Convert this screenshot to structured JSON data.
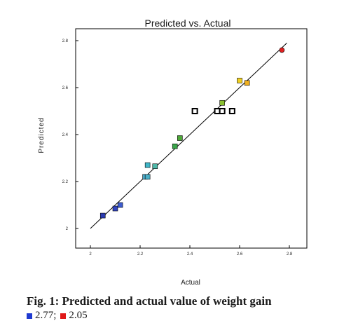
{
  "chart_data": {
    "type": "scatter",
    "title": "Predicted vs. Actual",
    "xlabel": "Actual",
    "ylabel": "Predicted",
    "xlim": [
      2.0,
      2.8
    ],
    "ylim": [
      2.0,
      2.8
    ],
    "xticks": [
      "2",
      "2.2",
      "2.4",
      "2.6",
      "2.8"
    ],
    "yticks": [
      "2",
      "2.2",
      "2.4",
      "2.6",
      "2.8"
    ],
    "reference_line": {
      "x": [
        2.0,
        2.79
      ],
      "y": [
        2.0,
        2.79
      ]
    },
    "points": [
      {
        "x": 2.05,
        "y": 2.055,
        "color": "#2a3bb0",
        "marker": "square",
        "filled": true
      },
      {
        "x": 2.1,
        "y": 2.085,
        "color": "#3245c0",
        "marker": "square",
        "filled": true
      },
      {
        "x": 2.12,
        "y": 2.1,
        "color": "#3d5cd0",
        "marker": "square",
        "filled": true
      },
      {
        "x": 2.22,
        "y": 2.22,
        "color": "#4aa8c8",
        "marker": "square",
        "filled": true
      },
      {
        "x": 2.23,
        "y": 2.22,
        "color": "#4ab0c8",
        "marker": "square",
        "filled": true
      },
      {
        "x": 2.23,
        "y": 2.27,
        "color": "#3fb6c8",
        "marker": "square",
        "filled": true
      },
      {
        "x": 2.26,
        "y": 2.265,
        "color": "#4fb8a8",
        "marker": "square",
        "filled": true
      },
      {
        "x": 2.34,
        "y": 2.35,
        "color": "#3aa64a",
        "marker": "square",
        "filled": true
      },
      {
        "x": 2.36,
        "y": 2.385,
        "color": "#4ea838",
        "marker": "square",
        "filled": true
      },
      {
        "x": 2.42,
        "y": 2.5,
        "color": "#000000",
        "marker": "square",
        "filled": false
      },
      {
        "x": 2.51,
        "y": 2.5,
        "color": "#000000",
        "marker": "square",
        "filled": false
      },
      {
        "x": 2.53,
        "y": 2.5,
        "color": "#000000",
        "marker": "square",
        "filled": false
      },
      {
        "x": 2.57,
        "y": 2.5,
        "color": "#000000",
        "marker": "square",
        "filled": false
      },
      {
        "x": 2.53,
        "y": 2.535,
        "color": "#8ac030",
        "marker": "square",
        "filled": true
      },
      {
        "x": 2.6,
        "y": 2.63,
        "color": "#f0d020",
        "marker": "square",
        "filled": true
      },
      {
        "x": 2.63,
        "y": 2.62,
        "color": "#f0b020",
        "marker": "square",
        "filled": true
      },
      {
        "x": 2.77,
        "y": 2.76,
        "color": "#e02020",
        "marker": "circle",
        "filled": true
      }
    ]
  },
  "caption": "Fig. 1: Predicted and actual value of weight gain",
  "legend": [
    {
      "color": "#1f3ad0",
      "label": "2.77;"
    },
    {
      "color": "#e01818",
      "label": "2.05"
    }
  ]
}
